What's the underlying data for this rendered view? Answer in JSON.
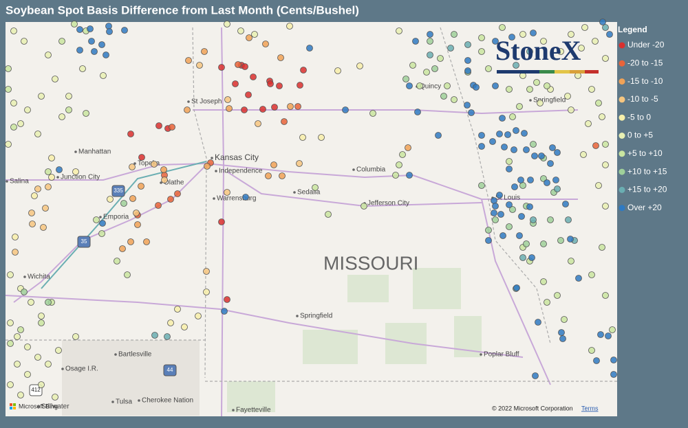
{
  "header": {
    "title": "Soybean Spot Basis Difference from Last Month (Cents/Bushel)"
  },
  "legend": {
    "title": "Legend",
    "items": [
      {
        "label": "Under -20",
        "color": "#d9302f"
      },
      {
        "label": "-20 to -15",
        "color": "#e8643a"
      },
      {
        "label": "-15 to -10",
        "color": "#f0a257"
      },
      {
        "label": "-10 to -5",
        "color": "#f6c680"
      },
      {
        "label": "-5 to 0",
        "color": "#f7efaa"
      },
      {
        "label": "0 to +5",
        "color": "#e8f0b3"
      },
      {
        "label": "+5 to +10",
        "color": "#c9e5a0"
      },
      {
        "label": "+10 to +15",
        "color": "#9fd09a"
      },
      {
        "label": "+15 to +20",
        "color": "#6aaeb2"
      },
      {
        "label": "Over +20",
        "color": "#2f7ac2"
      }
    ]
  },
  "logo": "StoneX",
  "map": {
    "state_label": "MISSOURI",
    "places": [
      "St Joseph",
      "Manhattan",
      "Kansas City",
      "Independence",
      "Topeka",
      "Junction City",
      "Salina",
      "Olathe",
      "Columbia",
      "Warrensburg",
      "Sedalia",
      "Jefferson City",
      "Emporia",
      "St Louis",
      "Springfield",
      "Springfield",
      "Quincy",
      "Wichita",
      "Bartlesville",
      "Osage I.R.",
      "Tulsa",
      "Cherokee Nation",
      "Fayetteville",
      "Poplar Bluff",
      "Stillwater"
    ],
    "shields": [
      "335",
      "35",
      "44",
      "412"
    ],
    "attribution": "© 2022 Microsoft Corporation",
    "terms": "Terms",
    "provider": "Microsoft Bing"
  }
}
